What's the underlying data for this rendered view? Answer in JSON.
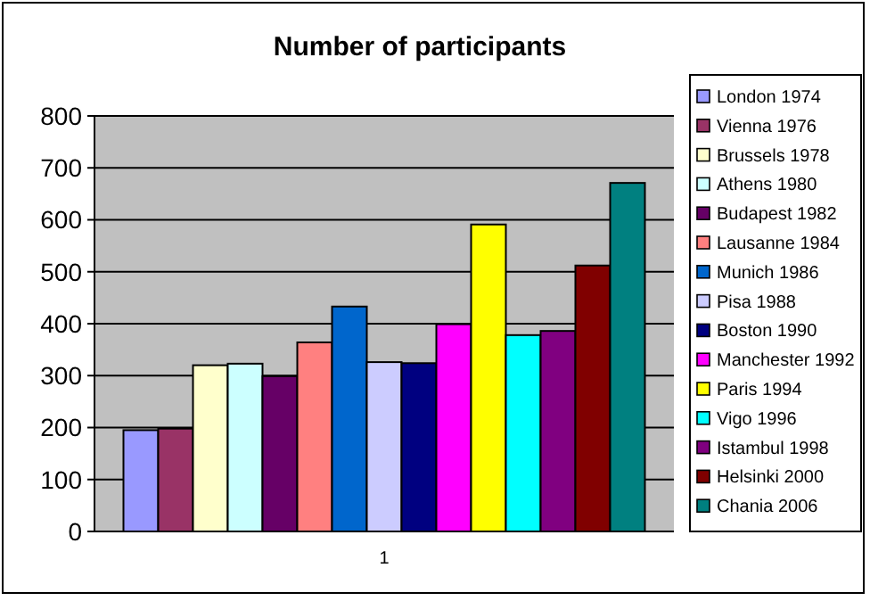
{
  "chart_data": {
    "type": "bar",
    "title": "Number of participants",
    "categories": [
      "1"
    ],
    "series": [
      {
        "name": "London 1974",
        "color": "#9999ff",
        "values": [
          195
        ]
      },
      {
        "name": "Vienna 1976",
        "color": "#993366",
        "values": [
          198
        ]
      },
      {
        "name": "Brussels 1978",
        "color": "#ffffcc",
        "values": [
          320
        ]
      },
      {
        "name": "Athens 1980",
        "color": "#ccffff",
        "values": [
          323
        ]
      },
      {
        "name": "Budapest 1982",
        "color": "#660066",
        "values": [
          299
        ]
      },
      {
        "name": "Lausanne 1984",
        "color": "#ff8080",
        "values": [
          364
        ]
      },
      {
        "name": "Munich 1986",
        "color": "#0066cc",
        "values": [
          433
        ]
      },
      {
        "name": "Pisa 1988",
        "color": "#ccccff",
        "values": [
          326
        ]
      },
      {
        "name": "Boston 1990",
        "color": "#000080",
        "values": [
          324
        ]
      },
      {
        "name": "Manchester 1992",
        "color": "#ff00ff",
        "values": [
          399
        ]
      },
      {
        "name": "Paris 1994",
        "color": "#ffff00",
        "values": [
          591
        ]
      },
      {
        "name": "Vigo 1996",
        "color": "#00ffff",
        "values": [
          378
        ]
      },
      {
        "name": "Istambul 1998",
        "color": "#800080",
        "values": [
          386
        ]
      },
      {
        "name": "Helsinki 2000",
        "color": "#800000",
        "values": [
          512
        ]
      },
      {
        "name": "Chania 2006",
        "color": "#008080",
        "values": [
          671
        ]
      }
    ],
    "ylim": [
      0,
      800
    ],
    "yticks": [
      0,
      100,
      200,
      300,
      400,
      500,
      600,
      700,
      800
    ],
    "grid": "y",
    "legend": "right"
  }
}
